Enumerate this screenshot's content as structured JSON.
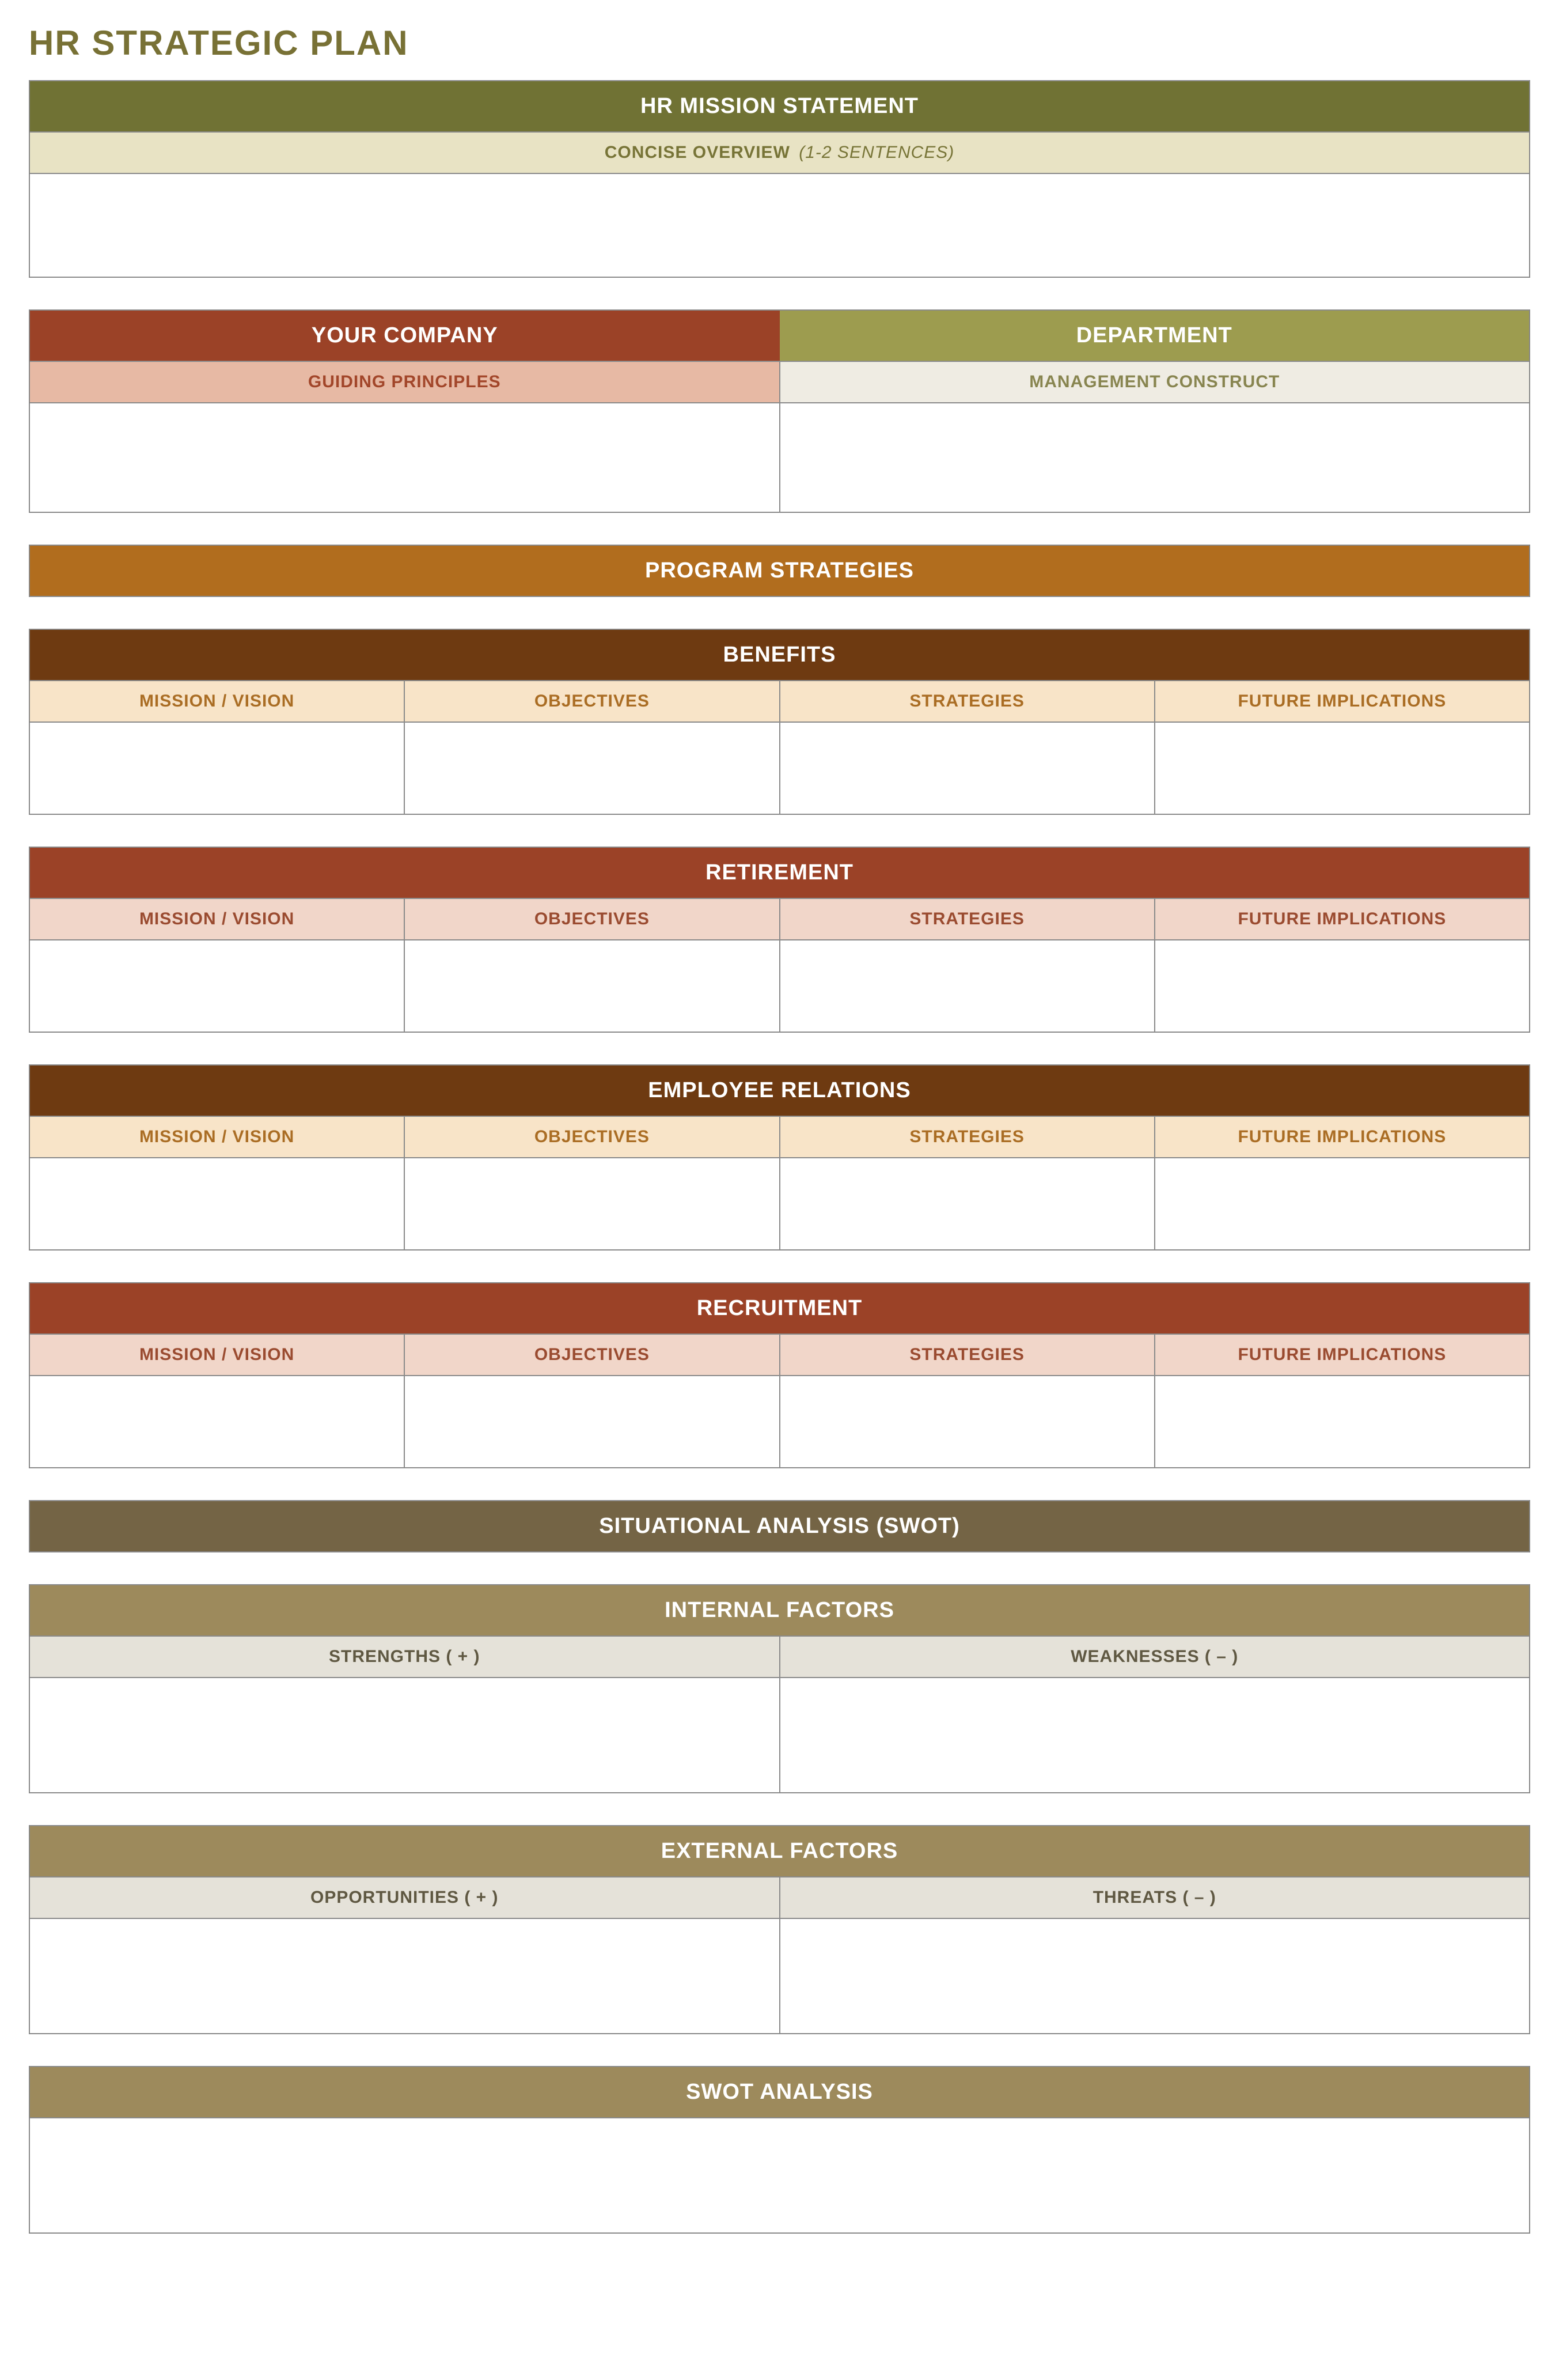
{
  "colors": {
    "title": "#787135",
    "olive_dark": "#707234",
    "olive_light": "#9d9c4f",
    "cream": "#e8e3c4",
    "cream_text": "#777437",
    "brick": "#9b4227",
    "salmon": "#e7b9a4",
    "salmon_text": "#a2462a",
    "beige": "#efece3",
    "beige_text": "#888550",
    "ochre": "#b16d1e",
    "brown_dark": "#6e3a11",
    "peach": "#f8e4c8",
    "peach_text": "#aa6d24",
    "blush": "#f1d6c9",
    "blush_text": "#9a4b30",
    "taupe_dark": "#746445",
    "taupe_mid": "#9d8a5c",
    "stone": "#e5e2d9",
    "stone_text": "#5f5842",
    "border": "#8a8a8a"
  },
  "page": {
    "title": "HR STRATEGIC PLAN"
  },
  "mission": {
    "header": "HR MISSION STATEMENT",
    "sub_label": "CONCISE OVERVIEW",
    "sub_hint": "(1-2 SENTENCES)"
  },
  "company": {
    "left_header": "YOUR COMPANY",
    "right_header": "DEPARTMENT",
    "left_sub": "GUIDING PRINCIPLES",
    "right_sub": "MANAGEMENT CONSTRUCT"
  },
  "program": {
    "header": "PROGRAM STRATEGIES",
    "columns": [
      "MISSION / VISION",
      "OBJECTIVES",
      "STRATEGIES",
      "FUTURE IMPLICATIONS"
    ],
    "groups": [
      {
        "title": "BENEFITS",
        "band_bg": "#6e3a11",
        "row_bg": "#f8e4c8",
        "row_text": "#aa6d24"
      },
      {
        "title": "RETIREMENT",
        "band_bg": "#9b4227",
        "row_bg": "#f1d6c9",
        "row_text": "#9a4b30"
      },
      {
        "title": "EMPLOYEE RELATIONS",
        "band_bg": "#6e3a11",
        "row_bg": "#f8e4c8",
        "row_text": "#aa6d24"
      },
      {
        "title": "RECRUITMENT",
        "band_bg": "#9b4227",
        "row_bg": "#f1d6c9",
        "row_text": "#9a4b30"
      }
    ]
  },
  "swot": {
    "header": "SITUATIONAL ANALYSIS (SWOT)",
    "internal": {
      "title": "INTERNAL FACTORS",
      "left": "STRENGTHS ( + )",
      "right": "WEAKNESSES ( – )"
    },
    "external": {
      "title": "EXTERNAL FACTORS",
      "left": "OPPORTUNITIES ( + )",
      "right": "THREATS ( – )"
    },
    "analysis": {
      "title": "SWOT ANALYSIS"
    }
  }
}
